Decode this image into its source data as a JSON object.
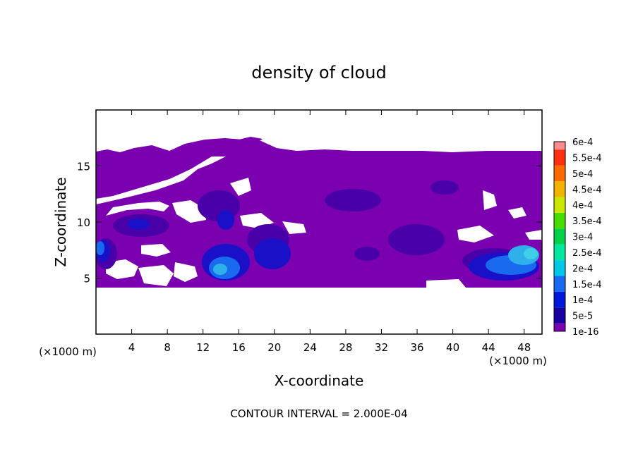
{
  "chart_data": {
    "type": "heatmap",
    "title": "density of cloud",
    "xlabel": "X-coordinate",
    "ylabel": "Z-coordinate",
    "x_unit_left": "(×1000 m)",
    "x_unit_right": "(×1000 m)",
    "xlim": [
      0,
      50
    ],
    "ylim": [
      0,
      20
    ],
    "x_ticks": [
      4,
      8,
      12,
      16,
      20,
      24,
      28,
      32,
      36,
      40,
      44,
      48
    ],
    "x_tick_labels": [
      "4",
      "8",
      "12",
      "16",
      "20",
      "24",
      "28",
      "32",
      "36",
      "40",
      "44",
      "48"
    ],
    "y_ticks": [
      5,
      10,
      15
    ],
    "y_tick_labels": [
      "5",
      "10",
      "15"
    ],
    "colorbar": {
      "levels": [
        "1e-16",
        "5e-5",
        "1e-4",
        "1.5e-4",
        "2e-4",
        "2.5e-4",
        "3e-4",
        "3.5e-4",
        "4e-4",
        "4.5e-4",
        "5e-4",
        "5.5e-4",
        "6e-4"
      ],
      "colors": [
        "#7a00b0",
        "#1a00a0",
        "#0018d8",
        "#1a6af0",
        "#00c8e6",
        "#00e8a0",
        "#00d24a",
        "#48dc00",
        "#c8e600",
        "#f0b400",
        "#ff6a00",
        "#ff3010",
        "#ff8c8c"
      ]
    },
    "footer": "CONTOUR INTERVAL = 2.000E-04",
    "cloud_layer_z_range": [
      4.2,
      17.3
    ],
    "notable_max_regions": [
      {
        "x": [
          13,
          18
        ],
        "z": [
          5,
          7
        ],
        "level": "1.5e-4"
      },
      {
        "x": [
          44,
          50
        ],
        "z": [
          5,
          8
        ],
        "level": "2e-4"
      }
    ]
  }
}
